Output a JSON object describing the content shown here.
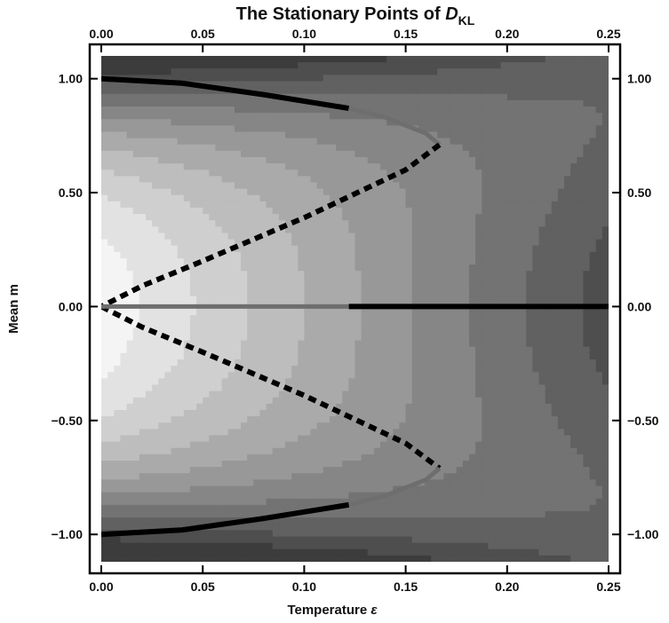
{
  "chart_data": {
    "type": "line",
    "title": "The Stationary Points of ",
    "title_symbol": "D",
    "title_subscript": "KL",
    "xlabel": "Temperature ",
    "xlabel_symbol": "ε",
    "ylabel": "Mean  m",
    "xlim": [
      0.0,
      0.25
    ],
    "ylim": [
      -1.12,
      1.1
    ],
    "x_ticks": [
      0.0,
      0.05,
      0.1,
      0.15,
      0.2,
      0.25
    ],
    "x_tick_labels": [
      "0.00",
      "0.05",
      "0.10",
      "0.15",
      "0.20",
      "0.25"
    ],
    "y_ticks": [
      -1.0,
      -0.5,
      0.0,
      0.5,
      1.0
    ],
    "y_tick_labels": [
      "−1.00",
      "−0.50",
      "0.00",
      "0.50",
      "1.00"
    ],
    "background": "filled contour map of D_KL, lighter = lower",
    "critical_temperature": 0.1667,
    "series": [
      {
        "style": "solid black",
        "x": [
          0.0,
          0.04,
          0.08,
          0.122
        ],
        "y": [
          1.0,
          0.98,
          0.93,
          0.87
        ]
      },
      {
        "style": "solid grey",
        "x": [
          0.122,
          0.14,
          0.16,
          0.1667
        ],
        "y": [
          0.87,
          0.83,
          0.76,
          0.71
        ]
      },
      {
        "style": "dashed black",
        "x": [
          0.1667,
          0.15,
          0.1,
          0.05,
          0.02,
          0.0
        ],
        "y": [
          0.71,
          0.6,
          0.39,
          0.2,
          0.09,
          0.0
        ]
      },
      {
        "style": "dashed black",
        "x": [
          0.0,
          0.02,
          0.05,
          0.1,
          0.15,
          0.1667
        ],
        "y": [
          0.0,
          -0.09,
          -0.2,
          -0.39,
          -0.6,
          -0.71
        ]
      },
      {
        "style": "solid grey",
        "x": [
          0.1667,
          0.16,
          0.14,
          0.122
        ],
        "y": [
          -0.71,
          -0.76,
          -0.83,
          -0.87
        ]
      },
      {
        "style": "solid black",
        "x": [
          0.122,
          0.08,
          0.04,
          0.0
        ],
        "y": [
          -0.87,
          -0.93,
          -0.98,
          -1.0
        ]
      },
      {
        "style": "solid grey",
        "x": [
          0.0,
          0.122
        ],
        "y": [
          0.0,
          0.0
        ]
      },
      {
        "style": "solid black",
        "x": [
          0.122,
          0.25
        ],
        "y": [
          0.0,
          0.0
        ]
      }
    ]
  },
  "colors": {
    "stable": "#000000",
    "metastable": "#6e6e6e",
    "unstable": "#000000",
    "contour_light": "#f4f4f4",
    "contour_dark": "#3c3c3c"
  }
}
